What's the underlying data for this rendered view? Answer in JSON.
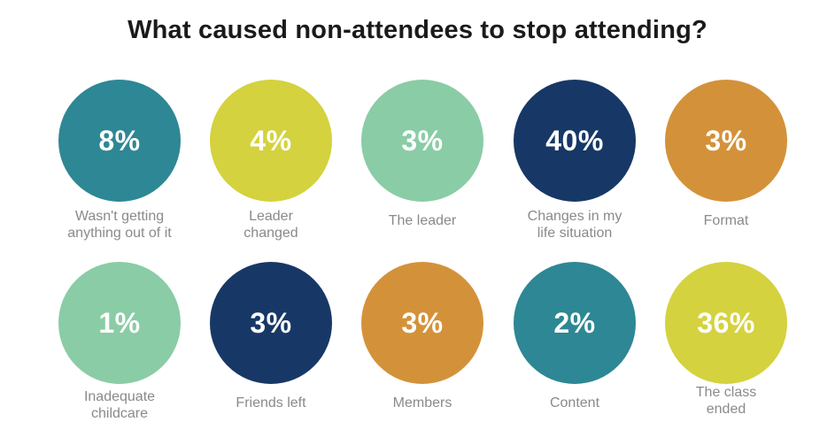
{
  "chart_data": {
    "type": "table",
    "title": "What caused non-attendees to stop attending?",
    "unit": "%",
    "categories": [
      "Wasn't getting\nanything out of it",
      "Leader\nchanged",
      "The leader",
      "Changes in my\nlife situation",
      "Format",
      "Inadequate\nchildcare",
      "Friends left",
      "Members",
      "Content",
      "The class\nended"
    ],
    "values": [
      8,
      4,
      3,
      40,
      3,
      1,
      3,
      3,
      2,
      36
    ],
    "value_labels": [
      "8%",
      "4%",
      "3%",
      "40%",
      "3%",
      "1%",
      "3%",
      "3%",
      "2%",
      "36%"
    ],
    "colors": [
      "#2e8794",
      "#d4d23e",
      "#8acca6",
      "#173866",
      "#d3923a",
      "#8acca6",
      "#173866",
      "#d3923a",
      "#2e8794",
      "#d4d23e"
    ]
  }
}
